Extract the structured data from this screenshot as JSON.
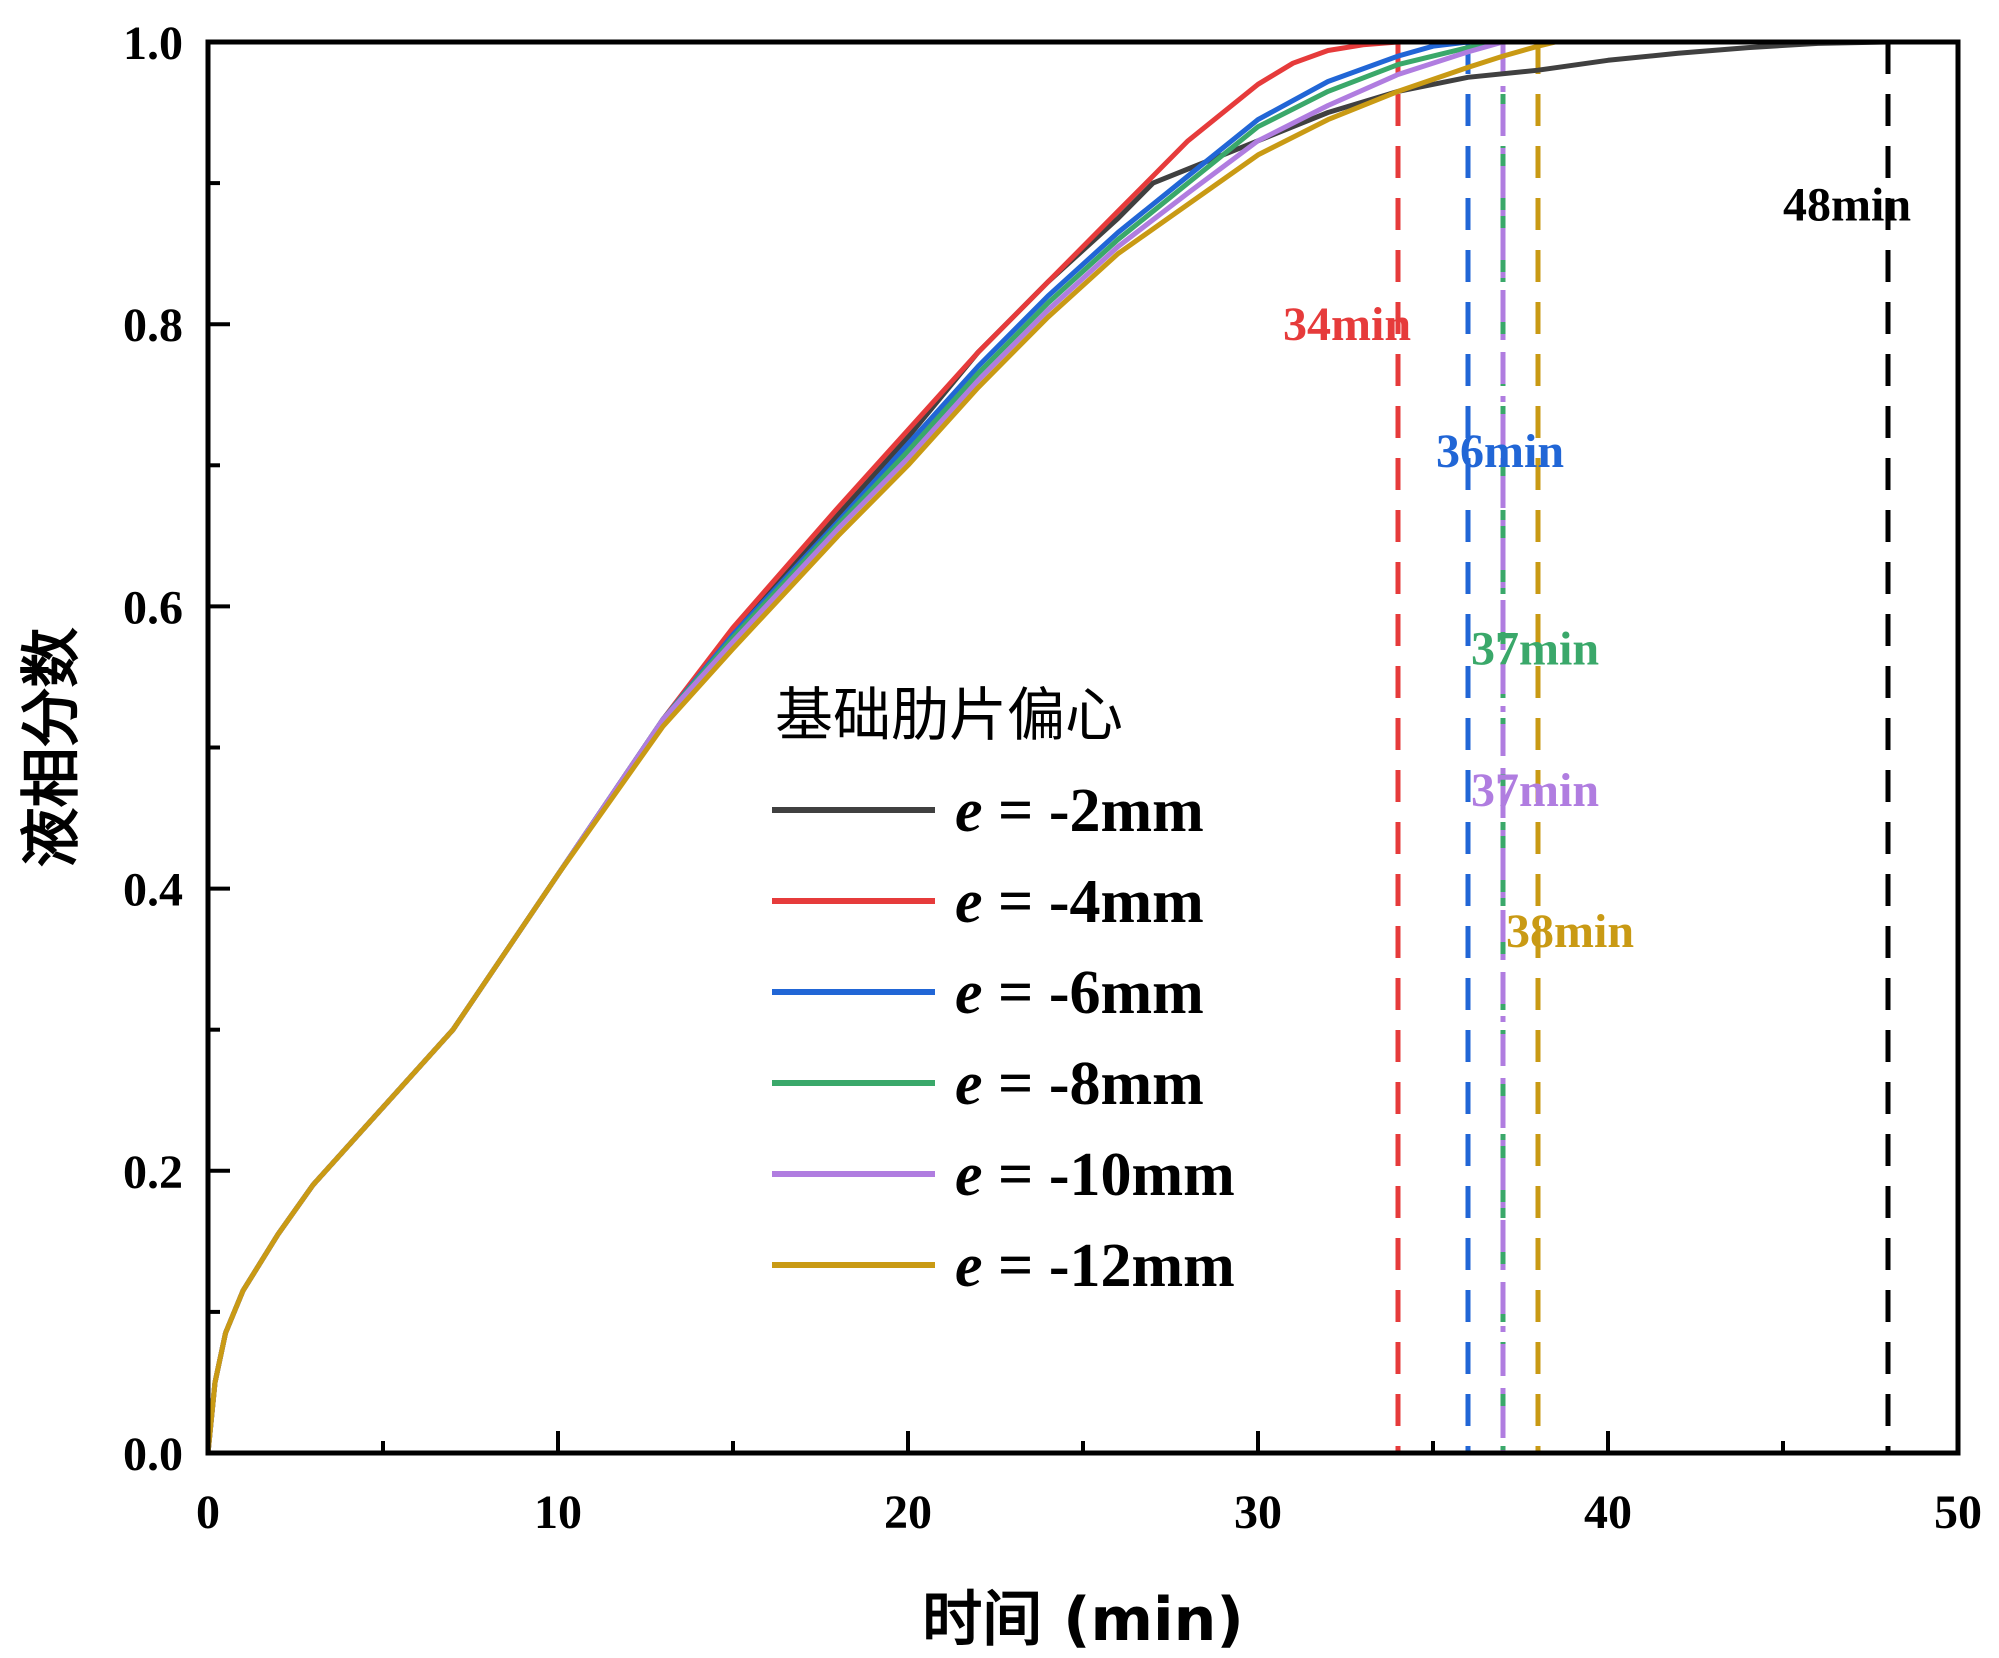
{
  "chart_data": {
    "type": "line",
    "title": "",
    "xlabel": "时间 (min)",
    "ylabel": "液相分数",
    "xlim": [
      0,
      50
    ],
    "ylim": [
      0,
      1.0
    ],
    "x_ticks": [
      0,
      10,
      20,
      30,
      40,
      50
    ],
    "x_tick_labels": [
      "0",
      "10",
      "20",
      "30",
      "40",
      "50"
    ],
    "y_ticks": [
      0.0,
      0.2,
      0.4,
      0.6,
      0.8,
      1.0
    ],
    "y_tick_labels": [
      "0.0",
      "0.2",
      "0.4",
      "0.6",
      "0.8",
      "1.0"
    ],
    "grid": false,
    "legend": {
      "title": "基础肋片偏心",
      "position": "center-left",
      "entries": [
        {
          "var": "e",
          "rest": " = -2mm"
        },
        {
          "var": "e",
          "rest": " = -4mm"
        },
        {
          "var": "e",
          "rest": " = -6mm"
        },
        {
          "var": "e",
          "rest": " = -8mm"
        },
        {
          "var": "e",
          "rest": " = -10mm"
        },
        {
          "var": "e",
          "rest": " = -12mm"
        }
      ]
    },
    "series": [
      {
        "name": "e = -2mm",
        "color": "#404040",
        "x": [
          0,
          0.2,
          0.5,
          1,
          2,
          3,
          5,
          7,
          10,
          13,
          15,
          18,
          20,
          22,
          24,
          26,
          27,
          28,
          30,
          32,
          34,
          36,
          38,
          40,
          42,
          44,
          46,
          48
        ],
        "y": [
          0,
          0.05,
          0.085,
          0.115,
          0.155,
          0.19,
          0.245,
          0.3,
          0.41,
          0.52,
          0.58,
          0.665,
          0.72,
          0.78,
          0.83,
          0.875,
          0.9,
          0.91,
          0.93,
          0.95,
          0.965,
          0.975,
          0.98,
          0.987,
          0.992,
          0.996,
          0.999,
          1.0
        ]
      },
      {
        "name": "e = -4mm",
        "color": "#e63b3b",
        "x": [
          0,
          0.2,
          0.5,
          1,
          2,
          3,
          5,
          7,
          10,
          13,
          15,
          18,
          20,
          22,
          24,
          26,
          28,
          30,
          31,
          32,
          33,
          34
        ],
        "y": [
          0,
          0.05,
          0.085,
          0.115,
          0.155,
          0.19,
          0.245,
          0.3,
          0.41,
          0.52,
          0.585,
          0.67,
          0.725,
          0.78,
          0.83,
          0.88,
          0.93,
          0.97,
          0.985,
          0.994,
          0.998,
          1.0
        ]
      },
      {
        "name": "e = -6mm",
        "color": "#2166d6",
        "x": [
          0,
          0.2,
          0.5,
          1,
          2,
          3,
          5,
          7,
          10,
          13,
          15,
          18,
          20,
          22,
          24,
          26,
          28,
          30,
          32,
          34,
          35,
          36
        ],
        "y": [
          0,
          0.05,
          0.085,
          0.115,
          0.155,
          0.19,
          0.245,
          0.3,
          0.41,
          0.52,
          0.58,
          0.66,
          0.715,
          0.77,
          0.82,
          0.865,
          0.905,
          0.945,
          0.972,
          0.99,
          0.997,
          1.0
        ]
      },
      {
        "name": "e = -8mm",
        "color": "#3aa86a",
        "x": [
          0,
          0.2,
          0.5,
          1,
          2,
          3,
          5,
          7,
          10,
          13,
          15,
          18,
          20,
          22,
          24,
          26,
          28,
          30,
          32,
          34,
          36,
          37
        ],
        "y": [
          0,
          0.05,
          0.085,
          0.115,
          0.155,
          0.19,
          0.245,
          0.3,
          0.41,
          0.52,
          0.578,
          0.658,
          0.71,
          0.765,
          0.815,
          0.86,
          0.9,
          0.94,
          0.965,
          0.984,
          0.996,
          1.0
        ]
      },
      {
        "name": "e = -10mm",
        "color": "#b07de0",
        "x": [
          0,
          0.2,
          0.5,
          1,
          2,
          3,
          5,
          7,
          10,
          13,
          15,
          18,
          20,
          22,
          24,
          26,
          28,
          30,
          32,
          34,
          36,
          37
        ],
        "y": [
          0,
          0.05,
          0.085,
          0.115,
          0.155,
          0.19,
          0.245,
          0.3,
          0.41,
          0.52,
          0.575,
          0.655,
          0.705,
          0.76,
          0.81,
          0.855,
          0.893,
          0.93,
          0.955,
          0.977,
          0.993,
          1.0
        ]
      },
      {
        "name": "e = -12mm",
        "color": "#c99a14",
        "x": [
          0,
          0.2,
          0.5,
          1,
          2,
          3,
          5,
          7,
          10,
          13,
          15,
          18,
          20,
          22,
          24,
          26,
          28,
          30,
          32,
          34,
          36,
          37,
          38,
          38.5
        ],
        "y": [
          0,
          0.05,
          0.085,
          0.115,
          0.155,
          0.19,
          0.245,
          0.3,
          0.41,
          0.515,
          0.57,
          0.65,
          0.7,
          0.755,
          0.805,
          0.85,
          0.885,
          0.92,
          0.945,
          0.965,
          0.982,
          0.99,
          0.997,
          1.0
        ]
      }
    ],
    "annotations": [
      {
        "x": 34,
        "text": "34min",
        "color": "#e63b3b",
        "label_y": 0.8,
        "style": "dashed"
      },
      {
        "x": 36,
        "text": "36min",
        "color": "#2166d6",
        "label_y": 0.71,
        "style": "dashed"
      },
      {
        "x": 37,
        "text": "37min",
        "color": "#3aa86a",
        "label_y": 0.57,
        "style": "dashed"
      },
      {
        "x": 37,
        "text": "37min",
        "color": "#b07de0",
        "label_y": 0.47,
        "style": "dashdot"
      },
      {
        "x": 38,
        "text": "38min",
        "color": "#c99a14",
        "label_y": 0.37,
        "style": "dashed"
      },
      {
        "x": 48,
        "text": "48min",
        "color": "#000000",
        "label_y": 0.885,
        "style": "dashed"
      }
    ]
  }
}
